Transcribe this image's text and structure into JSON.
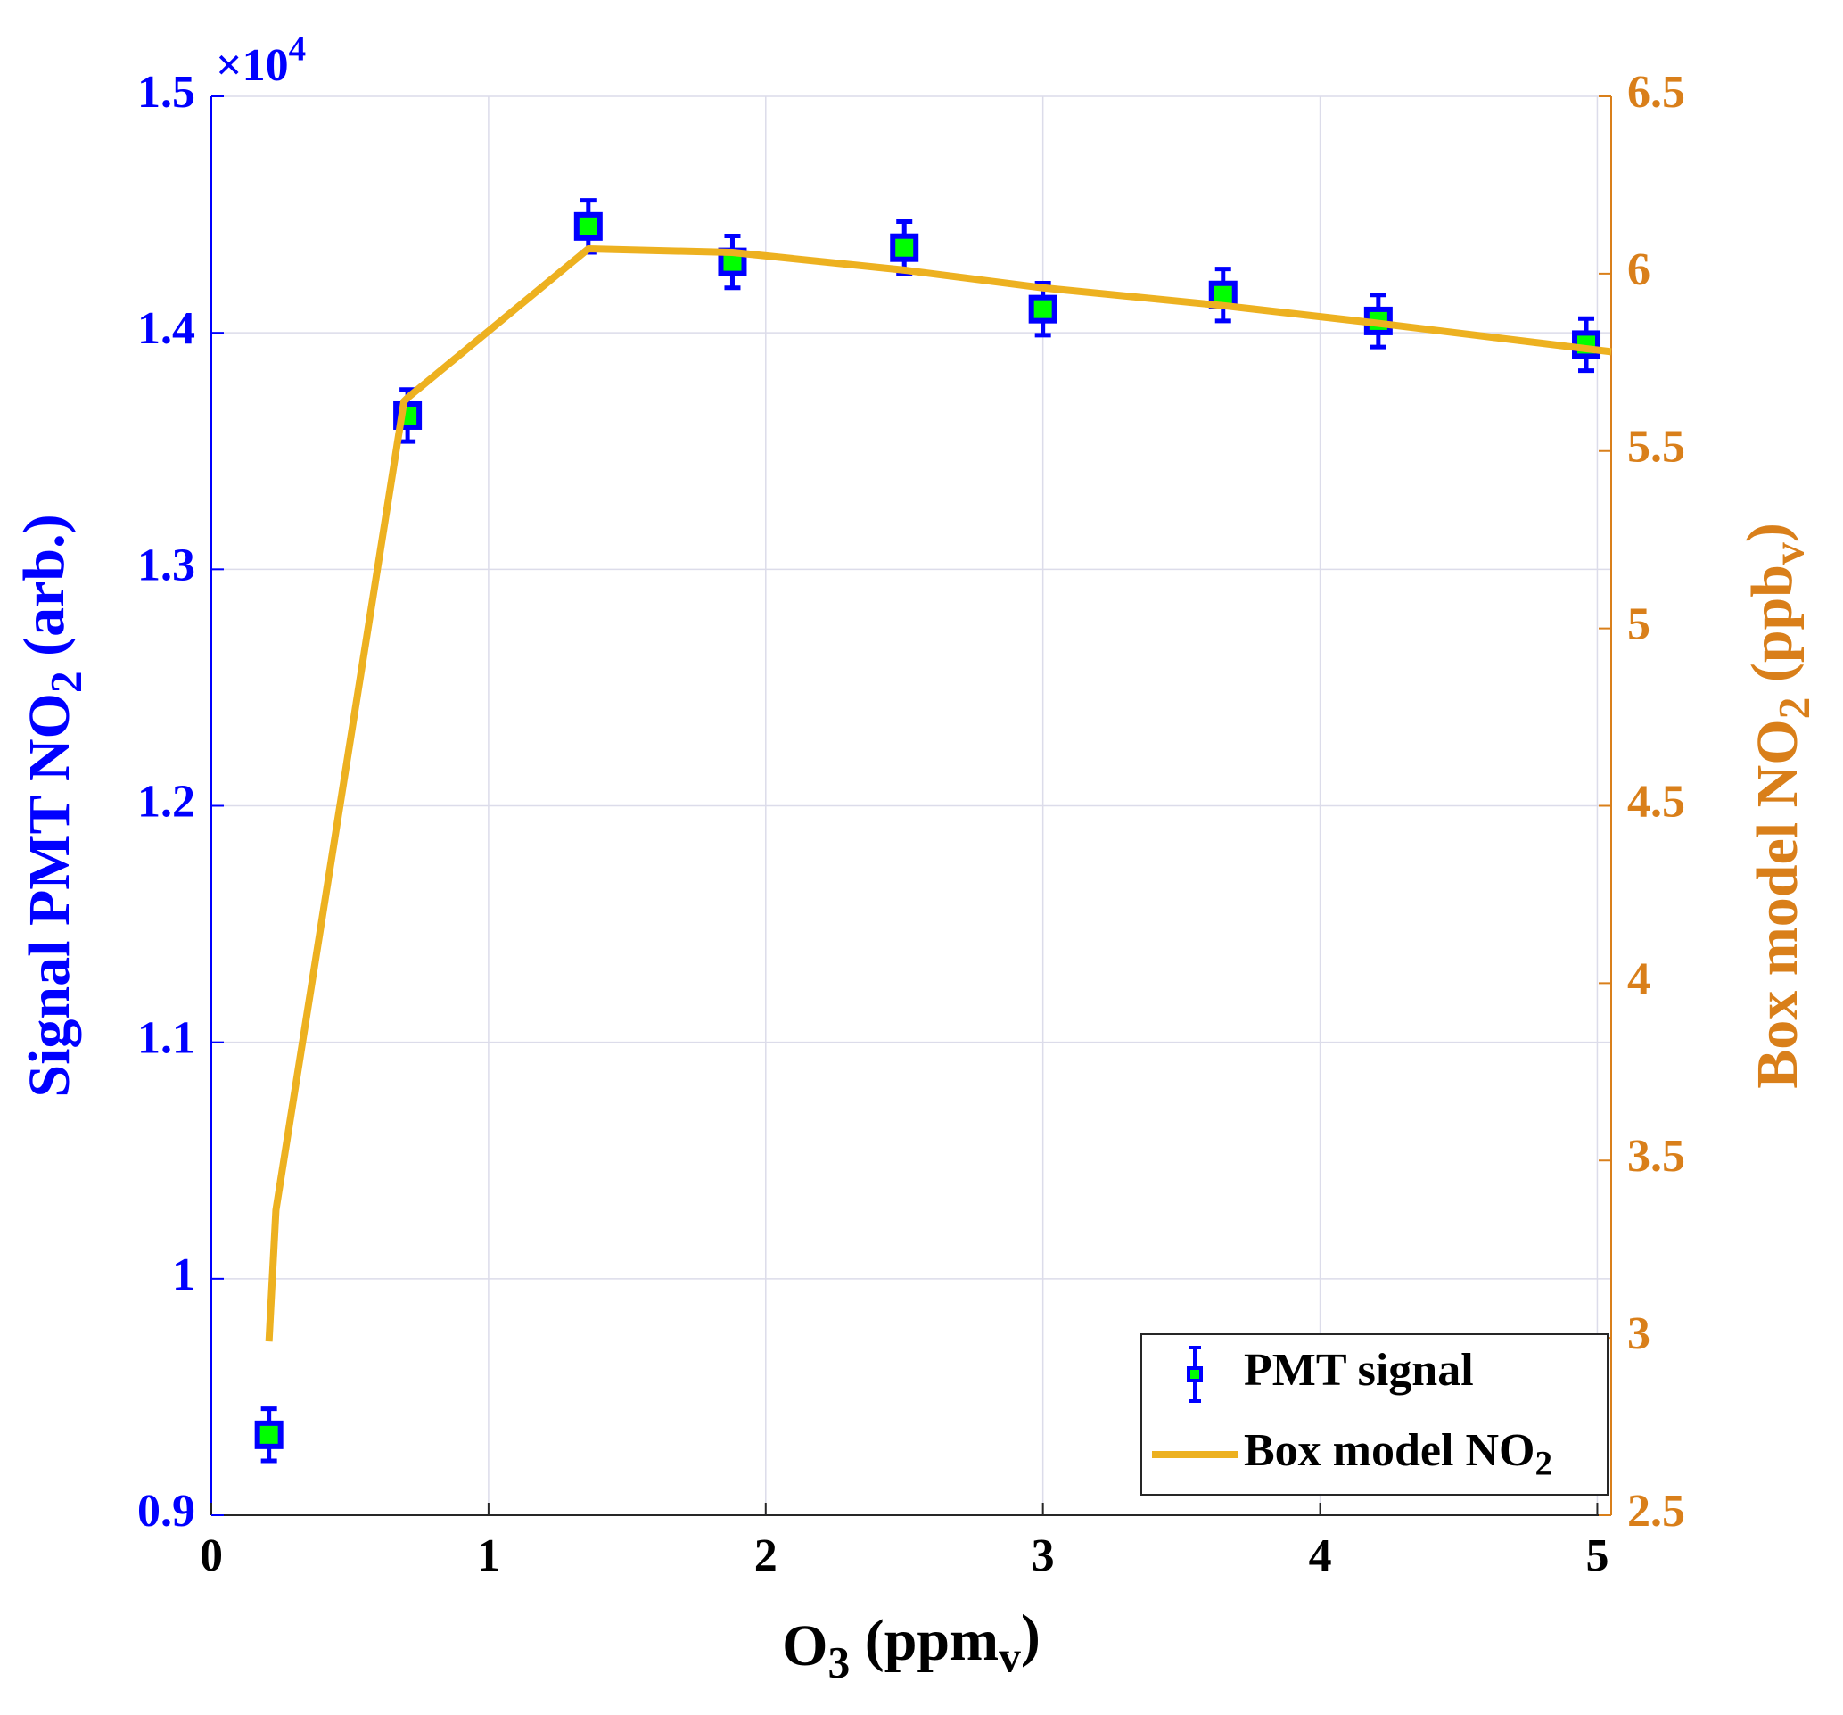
{
  "chart_data": {
    "type": "errorbar-line",
    "multiplier": {
      "base": "×10",
      "exponent": "4"
    },
    "xlabel": [
      {
        "text": "O"
      },
      {
        "text": "3",
        "sub": true
      },
      {
        "text": " (ppm"
      },
      {
        "text": "v",
        "sub": true
      },
      {
        "text": ")"
      }
    ],
    "ylabel": [
      {
        "text": "Signal PMT NO"
      },
      {
        "text": "2",
        "sub": true
      },
      {
        "text": " (arb.)"
      }
    ],
    "y2label": [
      {
        "text": "Box model NO"
      },
      {
        "text": "2",
        "sub": true
      },
      {
        "text": " (ppb"
      },
      {
        "text": "v",
        "sub": true
      },
      {
        "text": ")"
      }
    ],
    "xlim": [
      0,
      5.05
    ],
    "xticks": [
      0,
      1,
      2,
      3,
      4,
      5
    ],
    "ylim": [
      0.9,
      1.5
    ],
    "yticks": [
      0.9,
      1,
      1.1,
      1.2,
      1.3,
      1.4,
      1.5
    ],
    "y2lim": [
      2.5,
      6.5
    ],
    "y2ticks": [
      2.5,
      3,
      3.5,
      4,
      4.5,
      5,
      5.5,
      6,
      6.5
    ],
    "grid": true,
    "legend": "lower right",
    "ycolor": "#0000ff",
    "y2color": "#d97f1a",
    "series": [
      {
        "name": [
          {
            "text": "PMT signal"
          }
        ],
        "kind": "errorbar",
        "color": "#0000ff",
        "fill": "#00ff00",
        "x": [
          0.208,
          0.708,
          1.36,
          1.88,
          2.5,
          3.0,
          3.65,
          4.21,
          4.96
        ],
        "values": [
          0.934,
          1.365,
          1.445,
          1.43,
          1.436,
          1.41,
          1.416,
          1.405,
          1.395
        ],
        "errors": [
          0.011,
          0.011,
          0.011,
          0.011,
          0.011,
          0.011,
          0.011,
          0.011,
          0.011
        ]
      },
      {
        "name": [
          {
            "text": "Box model NO"
          },
          {
            "text": "2",
            "sub": true
          }
        ],
        "kind": "line",
        "axis": "y2",
        "color": "#edb120",
        "x": [
          0.208,
          0.233,
          0.695,
          0.708,
          1.36,
          1.88,
          2.5,
          3.0,
          3.65,
          4.21,
          5.05
        ],
        "values": [
          2.99,
          3.36,
          5.64,
          5.65,
          6.07,
          6.06,
          6.01,
          5.96,
          5.91,
          5.86,
          5.78
        ]
      }
    ]
  }
}
